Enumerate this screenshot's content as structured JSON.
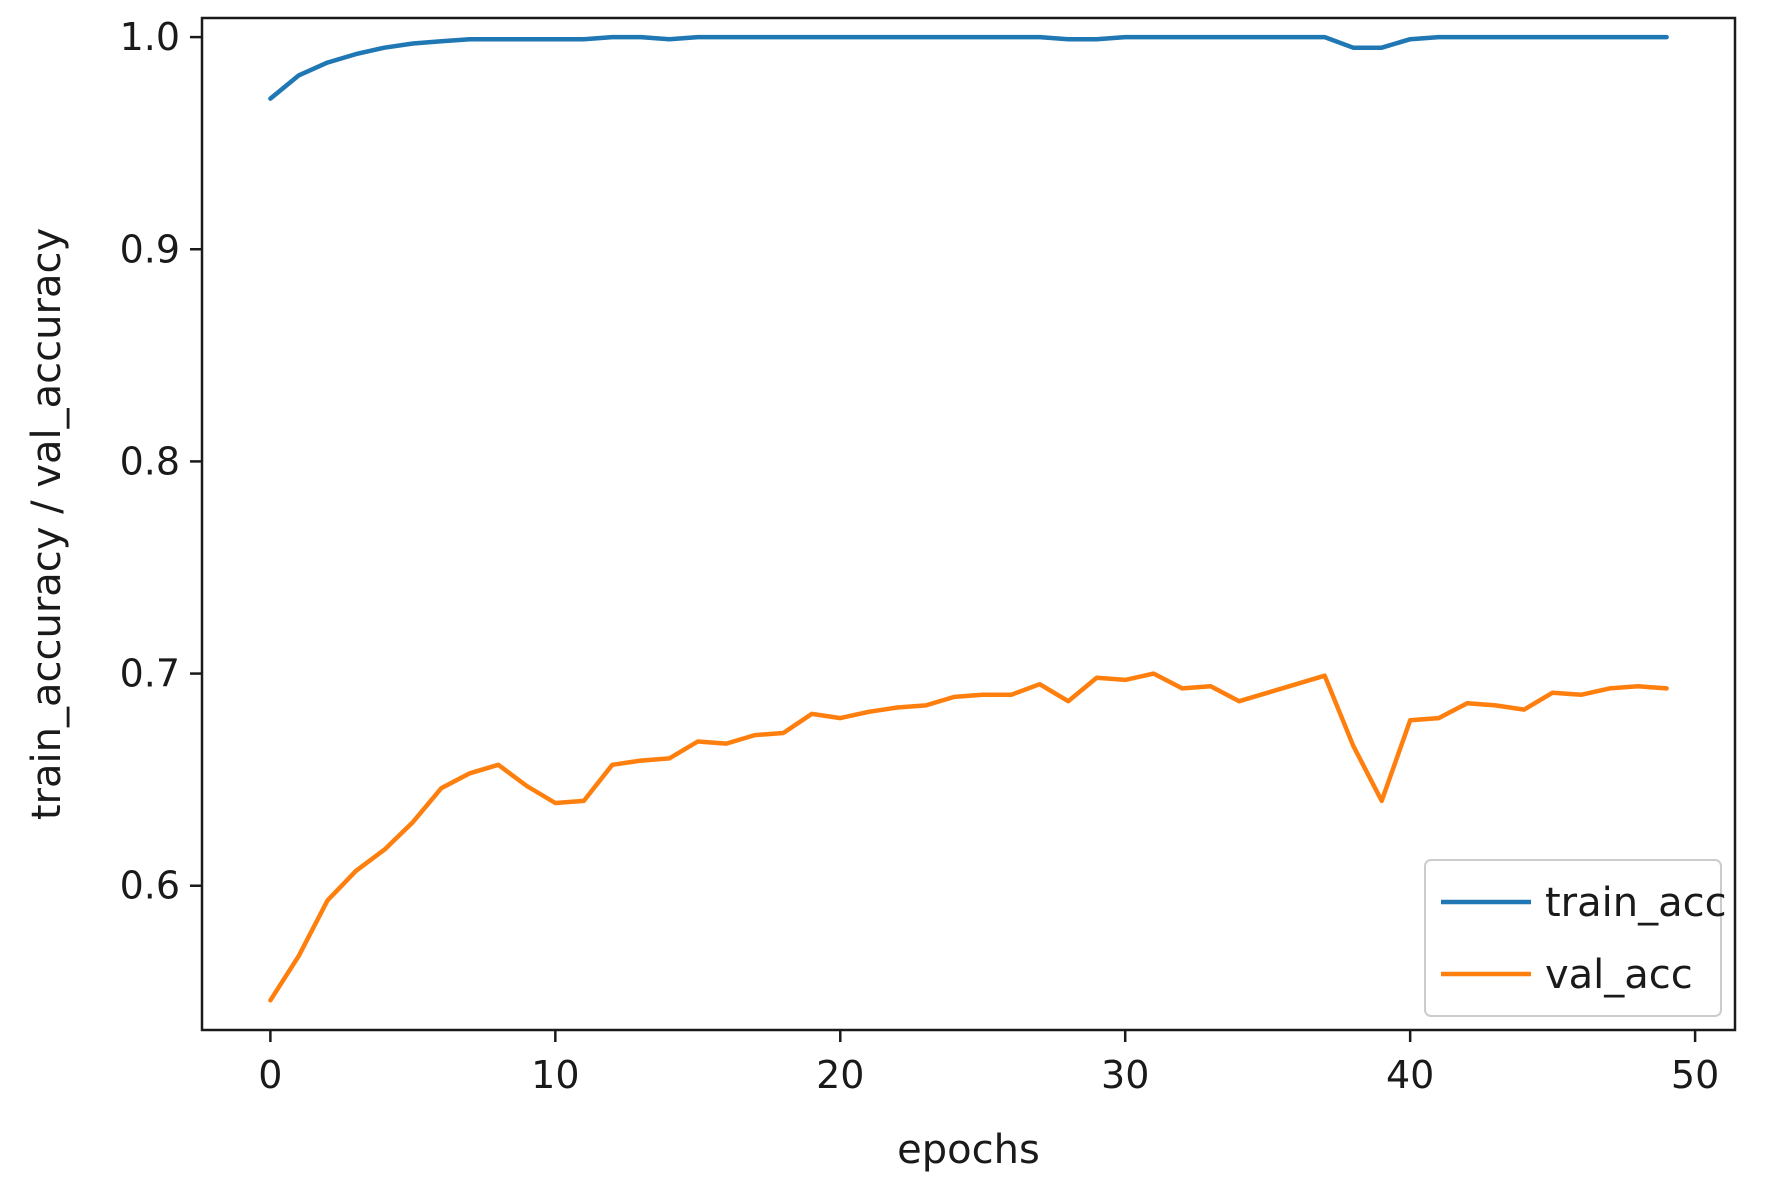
{
  "chart_data": {
    "type": "line",
    "title": "",
    "xlabel": "epochs",
    "ylabel": "train_accuracy / val_accuracy",
    "xlim": [
      -2.4,
      51.4
    ],
    "ylim": [
      0.532,
      1.009
    ],
    "xticks": [
      0,
      10,
      20,
      30,
      40,
      50
    ],
    "xtick_labels": [
      "0",
      "10",
      "20",
      "30",
      "40",
      "50"
    ],
    "yticks": [
      0.6,
      0.7,
      0.8,
      0.9,
      1.0
    ],
    "ytick_labels": [
      "0.6",
      "0.7",
      "0.8",
      "0.9",
      "1.0"
    ],
    "grid": false,
    "legend_position": "lower-right",
    "x": [
      0,
      1,
      2,
      3,
      4,
      5,
      6,
      7,
      8,
      9,
      10,
      11,
      12,
      13,
      14,
      15,
      16,
      17,
      18,
      19,
      20,
      21,
      22,
      23,
      24,
      25,
      26,
      27,
      28,
      29,
      30,
      31,
      32,
      33,
      34,
      35,
      36,
      37,
      38,
      39,
      40,
      41,
      42,
      43,
      44,
      45,
      46,
      47,
      48,
      49
    ],
    "series": [
      {
        "name": "train_acc",
        "color": "#1f77b4",
        "values": [
          0.971,
          0.982,
          0.988,
          0.992,
          0.995,
          0.997,
          0.998,
          0.999,
          0.999,
          0.999,
          0.999,
          0.999,
          1.0,
          1.0,
          0.999,
          1.0,
          1.0,
          1.0,
          1.0,
          1.0,
          1.0,
          1.0,
          1.0,
          1.0,
          1.0,
          1.0,
          1.0,
          1.0,
          0.999,
          0.999,
          1.0,
          1.0,
          1.0,
          1.0,
          1.0,
          1.0,
          1.0,
          1.0,
          0.995,
          0.995,
          0.999,
          1.0,
          1.0,
          1.0,
          1.0,
          1.0,
          1.0,
          1.0,
          1.0,
          1.0
        ]
      },
      {
        "name": "val_acc",
        "color": "#ff7f0e",
        "values": [
          0.546,
          0.567,
          0.593,
          0.607,
          0.617,
          0.63,
          0.646,
          0.653,
          0.657,
          0.647,
          0.639,
          0.64,
          0.657,
          0.659,
          0.66,
          0.668,
          0.667,
          0.671,
          0.672,
          0.681,
          0.679,
          0.682,
          0.684,
          0.685,
          0.689,
          0.69,
          0.69,
          0.695,
          0.687,
          0.698,
          0.697,
          0.7,
          0.693,
          0.694,
          0.687,
          0.691,
          0.695,
          0.699,
          0.666,
          0.64,
          0.678,
          0.679,
          0.686,
          0.685,
          0.683,
          0.691,
          0.69,
          0.693,
          0.694,
          0.693
        ]
      }
    ]
  }
}
